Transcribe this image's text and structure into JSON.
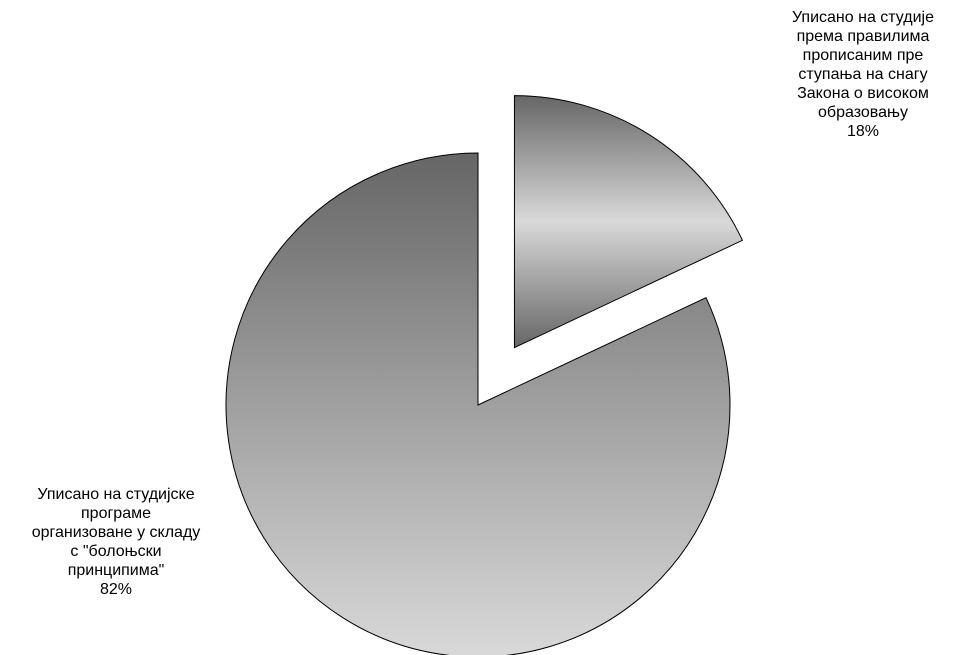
{
  "chart_data": {
    "type": "pie",
    "title": "",
    "slices": [
      {
        "label_lines": [
          "Уписано на студије",
          "према правилима",
          "прописаним пре",
          "ступања на снагу",
          "Закона о високом",
          "образовању"
        ],
        "value": 18,
        "value_label": "18%",
        "exploded": true
      },
      {
        "label_lines": [
          "Уписано на студијске",
          "програме",
          "организоване у складу",
          "с \"болоњски",
          "принципима\""
        ],
        "value": 82,
        "value_label": "82%",
        "exploded": false
      }
    ],
    "legend": "none",
    "fill": "vertical gradient dark gray to light gray",
    "colors": {
      "gradient_dark": "#666666",
      "gradient_light": "#d9d9d9",
      "outline": "#000000"
    }
  }
}
